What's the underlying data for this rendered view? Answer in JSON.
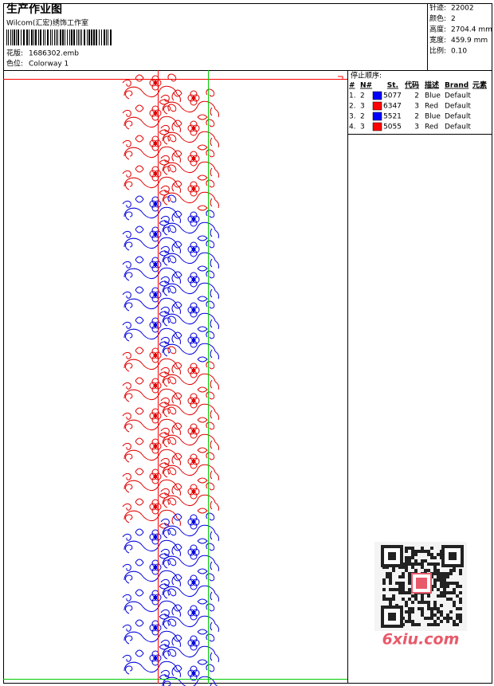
{
  "header": {
    "title": "生产作业图",
    "studio": "Wilcom(汇宏)绣饰工作室",
    "pattern_label": "花版:",
    "pattern": "1686302.emb",
    "colorway_label": "色位:",
    "colorway": "Colorway 1"
  },
  "info": [
    {
      "label": "针迹:",
      "value": "22002"
    },
    {
      "label": "颜色:",
      "value": "2"
    },
    {
      "label": "高度:",
      "value": "2704.4 mm"
    },
    {
      "label": "宽度:",
      "value": "459.9 mm"
    },
    {
      "label": "比例:",
      "value": "0.10"
    }
  ],
  "stop_sequence": {
    "title": "停止顺序:",
    "columns": [
      "#",
      "N#",
      "St.",
      "代码",
      "描述",
      "Brand",
      "元素"
    ],
    "rows": [
      {
        "index": "1.",
        "needle": "2",
        "color": "#0000ff",
        "stitches": "5077",
        "code": "2",
        "description": "Blue",
        "brand": "Default"
      },
      {
        "index": "2.",
        "needle": "3",
        "color": "#ff0000",
        "stitches": "6347",
        "code": "3",
        "description": "Red",
        "brand": "Default"
      },
      {
        "index": "3.",
        "needle": "2",
        "color": "#0000ff",
        "stitches": "5521",
        "code": "2",
        "description": "Blue",
        "brand": "Default"
      },
      {
        "index": "4.",
        "needle": "3",
        "color": "#ff0000",
        "stitches": "5055",
        "code": "3",
        "description": "Red",
        "brand": "Default"
      }
    ]
  },
  "watermark": "6xiu.com"
}
